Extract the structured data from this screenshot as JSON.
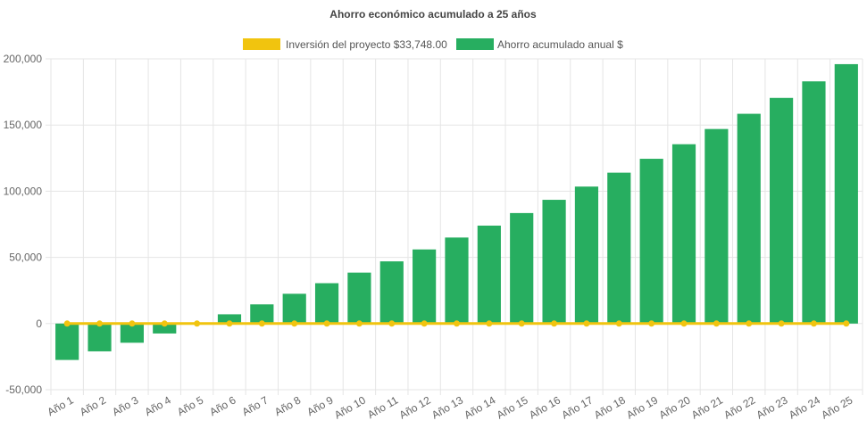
{
  "chart_data": {
    "type": "bar",
    "title": "Ahorro económico acumulado a 25 años",
    "categories": [
      "Año 1",
      "Año 2",
      "Año 3",
      "Año 4",
      "Año 5",
      "Año 6",
      "Año 7",
      "Año 8",
      "Año 9",
      "Año 10",
      "Año 11",
      "Año 12",
      "Año 13",
      "Año 14",
      "Año 15",
      "Año 16",
      "Año 17",
      "Año 18",
      "Año 19",
      "Año 20",
      "Año 21",
      "Año 22",
      "Año 23",
      "Año 24",
      "Año 25"
    ],
    "series": [
      {
        "name": "Inversión del proyecto $33,748.00",
        "type": "line",
        "color": "#f1c40f",
        "values": [
          0,
          0,
          0,
          0,
          0,
          0,
          0,
          0,
          0,
          0,
          0,
          0,
          0,
          0,
          0,
          0,
          0,
          0,
          0,
          0,
          0,
          0,
          0,
          0,
          0
        ]
      },
      {
        "name": "Ahorro acumulado anual $",
        "type": "bar",
        "color": "#27ae60",
        "values": [
          -27500,
          -21000,
          -14500,
          -7500,
          0,
          7000,
          14500,
          22500,
          30500,
          38500,
          47000,
          56000,
          65000,
          74000,
          83500,
          93500,
          103500,
          114000,
          124500,
          135500,
          147000,
          158500,
          170500,
          183000,
          196000
        ]
      }
    ],
    "ylim": [
      -50000,
      200000
    ],
    "yticks": [
      -50000,
      0,
      50000,
      100000,
      150000,
      200000
    ],
    "ytick_labels": [
      "-50,000",
      "0",
      "50,000",
      "100,000",
      "150,000",
      "200,000"
    ],
    "legend_position": "top",
    "grid": true
  }
}
